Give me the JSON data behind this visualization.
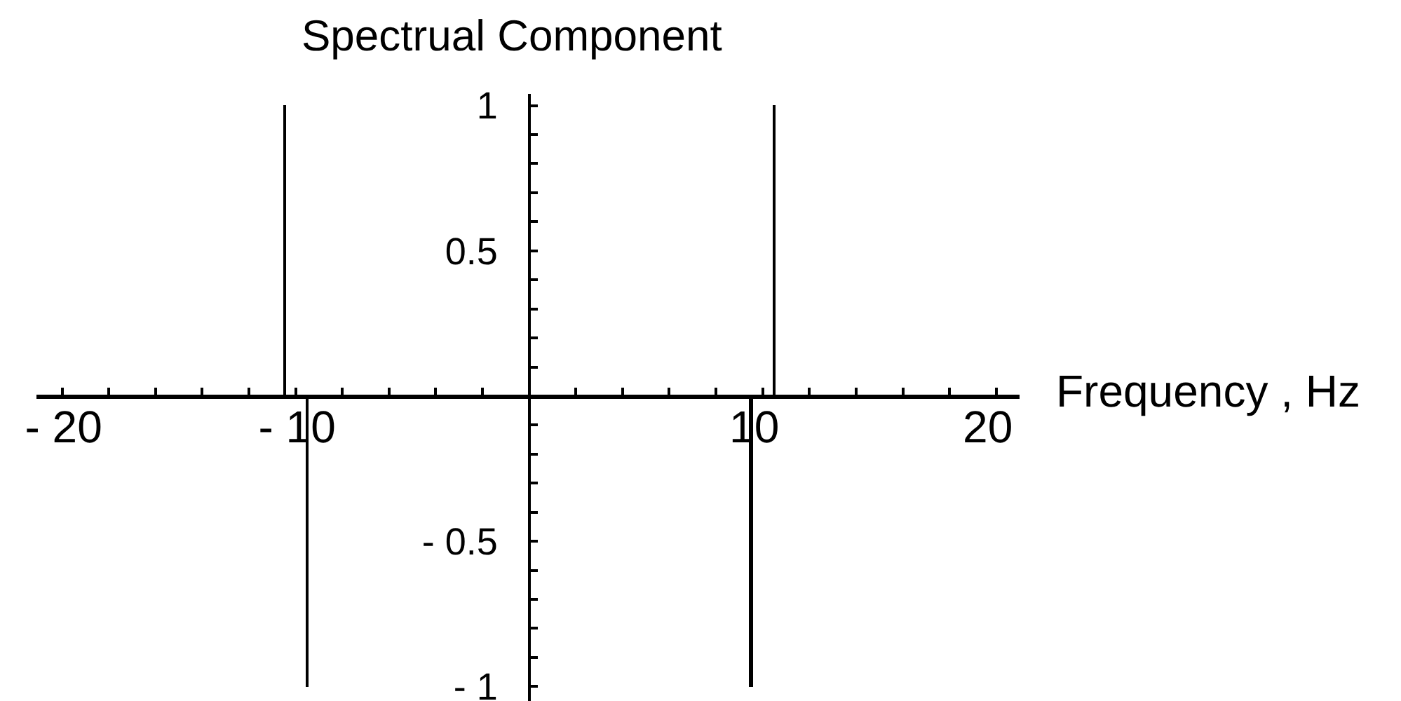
{
  "chart_data": {
    "type": "bar",
    "xlabel": "Frequency , Hz",
    "ylabel": "Spectrual Component",
    "x": [
      -10.5,
      -9.5,
      9.5,
      10.5
    ],
    "values": [
      1,
      -1,
      -1,
      1
    ],
    "color": "#000000",
    "xlim": [
      -21.1,
      21
    ],
    "ylim": [
      -1.05,
      1.04
    ],
    "xticks": [
      {
        "value": -20,
        "label": "- 20"
      },
      {
        "value": -18,
        "label": null
      },
      {
        "value": -16,
        "label": null
      },
      {
        "value": -14,
        "label": null
      },
      {
        "value": -12,
        "label": null
      },
      {
        "value": -10,
        "label": "- 10"
      },
      {
        "value": -8,
        "label": null
      },
      {
        "value": -6,
        "label": null
      },
      {
        "value": -4,
        "label": null
      },
      {
        "value": -2,
        "label": null
      },
      {
        "value": 2,
        "label": null
      },
      {
        "value": 4,
        "label": null
      },
      {
        "value": 6,
        "label": null
      },
      {
        "value": 8,
        "label": null
      },
      10,
      {
        "value": 12,
        "label": null
      },
      {
        "value": 14,
        "label": null
      },
      {
        "value": 16,
        "label": null
      },
      {
        "value": 18,
        "label": null
      },
      20
    ],
    "yticks": [
      {
        "value": -1,
        "label": "- 1"
      },
      {
        "value": -0.9,
        "label": null
      },
      {
        "value": -0.8,
        "label": null
      },
      {
        "value": -0.7,
        "label": null
      },
      {
        "value": -0.6,
        "label": null
      },
      {
        "value": -0.5,
        "label": "- 0.5"
      },
      {
        "value": -0.4,
        "label": null
      },
      {
        "value": -0.3,
        "label": null
      },
      {
        "value": -0.2,
        "label": null
      },
      {
        "value": -0.1,
        "label": null
      },
      {
        "value": 0.1,
        "label": null
      },
      {
        "value": 0.2,
        "label": null
      },
      {
        "value": 0.3,
        "label": null
      },
      {
        "value": 0.4,
        "label": null
      },
      0.5,
      {
        "value": 0.6,
        "label": null
      },
      {
        "value": 0.7,
        "label": null
      },
      {
        "value": 0.8,
        "label": null
      },
      {
        "value": 0.9,
        "label": null
      },
      1
    ]
  }
}
